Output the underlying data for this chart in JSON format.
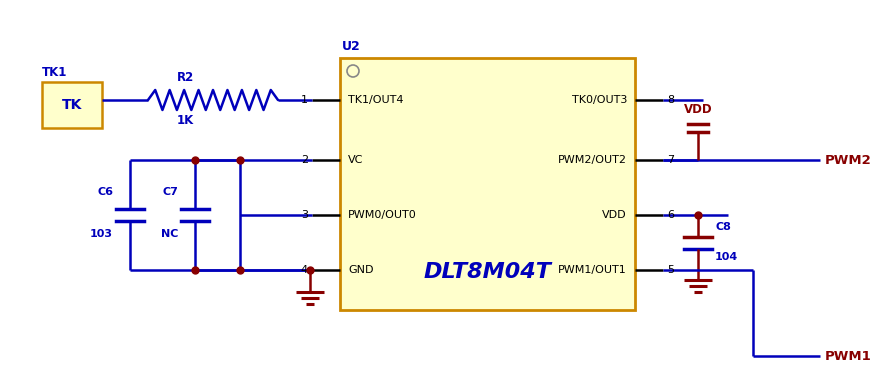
{
  "bg_color": "#ffffff",
  "blue": "#0000bb",
  "dark_red": "#880000",
  "black": "#000000",
  "yellow_fill": "#ffffcc",
  "yellow_border": "#cc8800",
  "ic_fill": "#ffffcc",
  "ic_border": "#cc8800",
  "figsize": [
    8.84,
    3.84
  ],
  "dpi": 100,
  "pin_labels_left": [
    "TK1/OUT4",
    "VC",
    "PWM0/OUT0",
    "GND"
  ],
  "pin_labels_right": [
    "TK0/OUT3",
    "PWM2/OUT2",
    "VDD",
    "PWM1/OUT1"
  ],
  "pin_numbers_left": [
    "1",
    "2",
    "3",
    "4"
  ],
  "pin_numbers_right": [
    "8",
    "7",
    "6",
    "5"
  ]
}
